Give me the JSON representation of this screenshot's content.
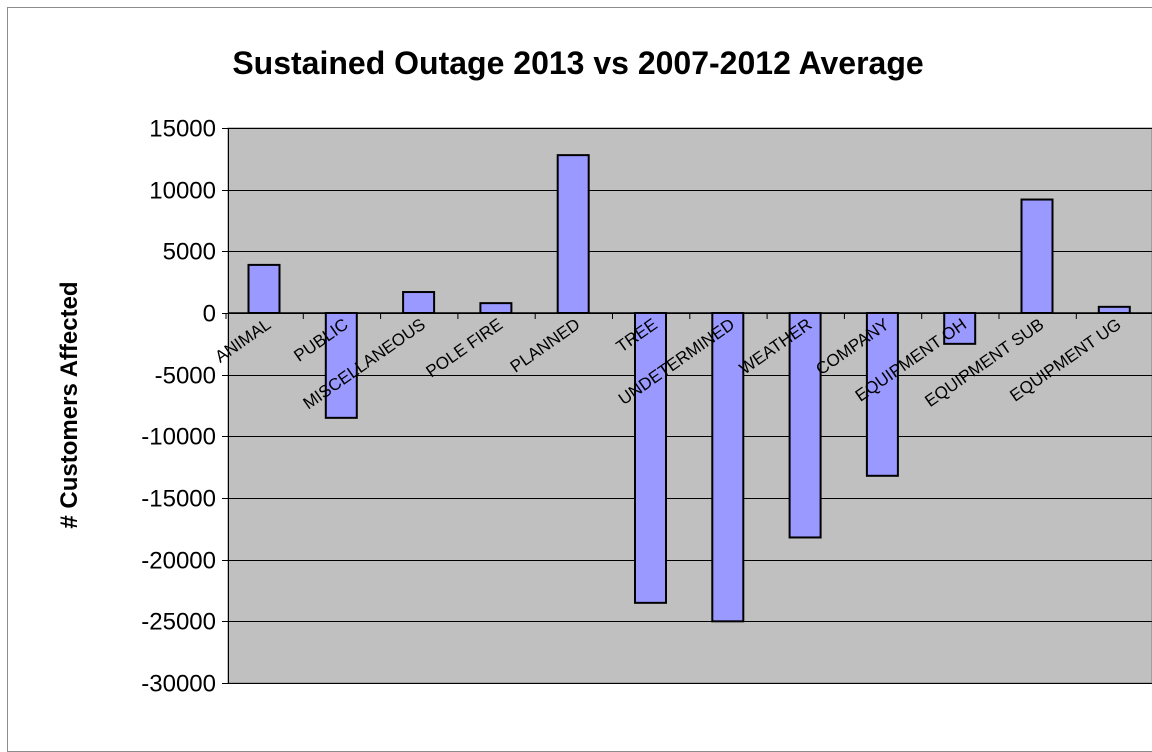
{
  "chart_data": {
    "type": "bar",
    "title": "Sustained Outage 2013 vs 2007-2012 Average",
    "ylabel": "# Customers Affected",
    "xlabel": "",
    "ylim": [
      -30000,
      15000
    ],
    "yticks": [
      15000,
      10000,
      5000,
      0,
      -5000,
      -10000,
      -15000,
      -20000,
      -25000,
      -30000
    ],
    "categories": [
      "ANIMAL",
      "PUBLIC",
      "MISCELLANEOUS",
      "POLE FIRE",
      "PLANNED",
      "TREE",
      "UNDETERMINED",
      "WEATHER",
      "COMPANY",
      "EQUIPMENT OH",
      "EQUIPMENT SUB",
      "EQUIPMENT UG"
    ],
    "values": [
      3900,
      -8500,
      1700,
      800,
      12800,
      -23500,
      -25000,
      -18200,
      -13200,
      -2500,
      9200,
      500
    ],
    "grid": true,
    "legend": "none",
    "colors": {
      "plot_background": "#c0c0c0",
      "bar_fill": "#9999ff",
      "bar_stroke": "#000000",
      "gridline": "#000000"
    }
  }
}
